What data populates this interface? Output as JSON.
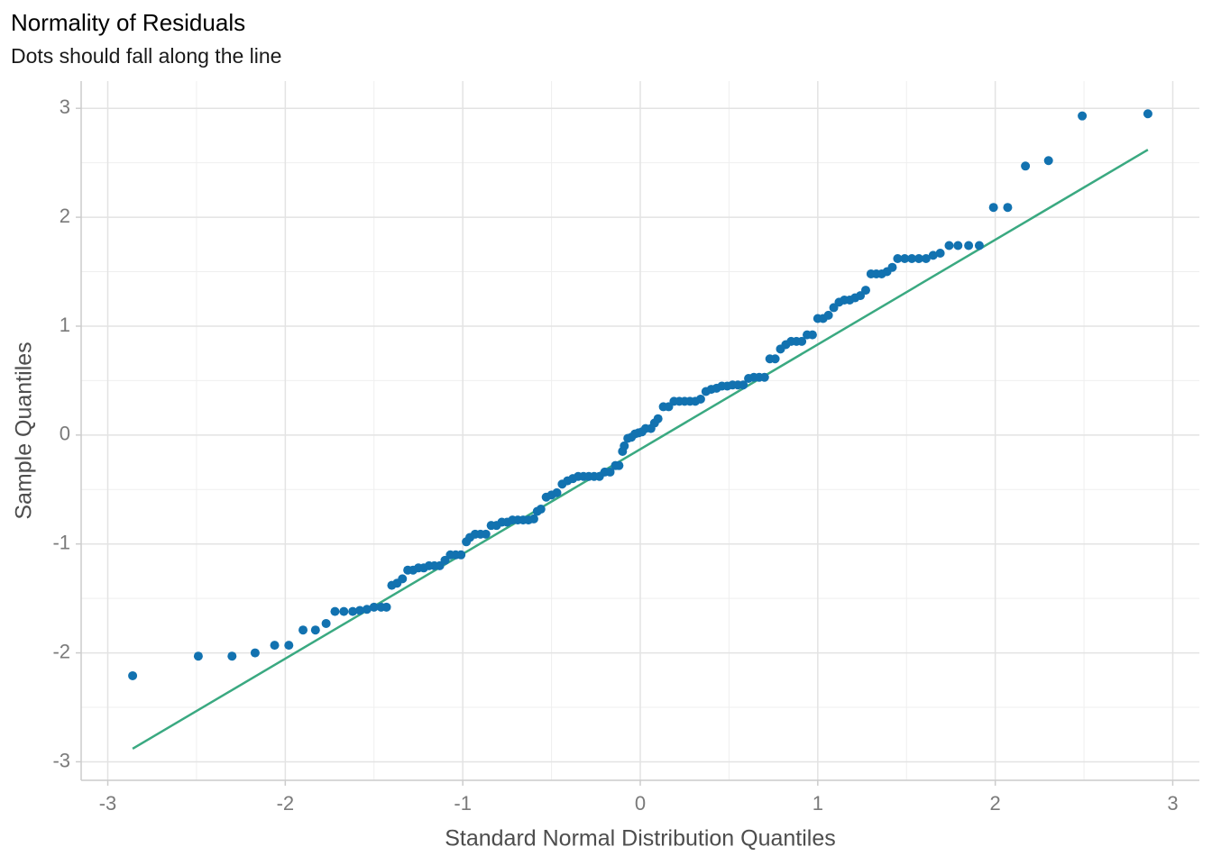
{
  "chart_data": {
    "type": "scatter",
    "title": "Normality of Residuals",
    "subtitle": "Dots should fall along the line",
    "x_label": "Standard Normal Distribution Quantiles",
    "y_label": "Sample Quantiles",
    "xlim": [
      -3.15,
      3.15
    ],
    "ylim": [
      -3.17,
      3.25
    ],
    "xticks": [
      -3,
      -2,
      -1,
      0,
      1,
      2,
      3
    ],
    "yticks": [
      -3,
      -2,
      -1,
      0,
      1,
      2,
      3
    ],
    "xminor": [
      -2.5,
      -1.5,
      -0.5,
      0.5,
      1.5,
      2.5
    ],
    "yminor": [
      -2.5,
      -1.5,
      -0.5,
      0.5,
      1.5,
      2.5
    ],
    "grid": true,
    "color": "#1272b0",
    "x": [
      -2.86,
      -2.49,
      -2.3,
      -2.17,
      -2.06,
      -1.98,
      -1.9,
      -1.83,
      -1.77,
      -1.72,
      -1.67,
      -1.62,
      -1.58,
      -1.54,
      -1.5,
      -1.46,
      -1.43,
      -1.4,
      -1.37,
      -1.34,
      -1.31,
      -1.28,
      -1.25,
      -1.22,
      -1.19,
      -1.16,
      -1.13,
      -1.1,
      -1.07,
      -1.04,
      -1.01,
      -0.98,
      -0.96,
      -0.93,
      -0.9,
      -0.87,
      -0.84,
      -0.81,
      -0.78,
      -0.75,
      -0.72,
      -0.69,
      -0.66,
      -0.63,
      -0.6,
      -0.58,
      -0.56,
      -0.53,
      -0.5,
      -0.47,
      -0.44,
      -0.41,
      -0.38,
      -0.35,
      -0.32,
      -0.29,
      -0.26,
      -0.23,
      -0.2,
      -0.17,
      -0.14,
      -0.12,
      -0.1,
      -0.09,
      -0.07,
      -0.05,
      -0.03,
      -0.01,
      0.01,
      0.03,
      0.06,
      0.08,
      0.1,
      0.13,
      0.16,
      0.19,
      0.22,
      0.25,
      0.28,
      0.31,
      0.34,
      0.37,
      0.4,
      0.43,
      0.46,
      0.49,
      0.52,
      0.55,
      0.58,
      0.61,
      0.64,
      0.67,
      0.7,
      0.73,
      0.76,
      0.79,
      0.82,
      0.85,
      0.88,
      0.91,
      0.94,
      0.97,
      1.0,
      1.03,
      1.06,
      1.09,
      1.12,
      1.15,
      1.18,
      1.21,
      1.24,
      1.27,
      1.3,
      1.33,
      1.36,
      1.39,
      1.42,
      1.45,
      1.49,
      1.53,
      1.57,
      1.61,
      1.65,
      1.69,
      1.74,
      1.79,
      1.85,
      1.91,
      1.99,
      2.07,
      2.17,
      2.3,
      2.49,
      2.86
    ],
    "values": [
      -2.21,
      -2.03,
      -2.03,
      -2.0,
      -1.93,
      -1.93,
      -1.79,
      -1.79,
      -1.73,
      -1.62,
      -1.62,
      -1.62,
      -1.61,
      -1.6,
      -1.58,
      -1.58,
      -1.58,
      -1.38,
      -1.36,
      -1.32,
      -1.24,
      -1.24,
      -1.22,
      -1.22,
      -1.2,
      -1.2,
      -1.2,
      -1.15,
      -1.1,
      -1.1,
      -1.1,
      -0.98,
      -0.94,
      -0.91,
      -0.91,
      -0.91,
      -0.83,
      -0.83,
      -0.8,
      -0.8,
      -0.78,
      -0.78,
      -0.78,
      -0.78,
      -0.77,
      -0.7,
      -0.68,
      -0.57,
      -0.55,
      -0.53,
      -0.45,
      -0.42,
      -0.4,
      -0.38,
      -0.38,
      -0.38,
      -0.38,
      -0.38,
      -0.34,
      -0.34,
      -0.28,
      -0.28,
      -0.15,
      -0.1,
      -0.03,
      -0.02,
      0.01,
      0.02,
      0.03,
      0.06,
      0.06,
      0.11,
      0.15,
      0.26,
      0.26,
      0.31,
      0.31,
      0.31,
      0.31,
      0.31,
      0.33,
      0.4,
      0.42,
      0.43,
      0.45,
      0.45,
      0.46,
      0.46,
      0.46,
      0.52,
      0.53,
      0.53,
      0.53,
      0.7,
      0.7,
      0.79,
      0.83,
      0.86,
      0.86,
      0.86,
      0.92,
      0.92,
      1.07,
      1.07,
      1.1,
      1.17,
      1.22,
      1.24,
      1.24,
      1.26,
      1.28,
      1.33,
      1.48,
      1.48,
      1.48,
      1.5,
      1.54,
      1.62,
      1.62,
      1.62,
      1.62,
      1.62,
      1.65,
      1.67,
      1.74,
      1.74,
      1.74,
      1.74,
      2.09,
      2.09,
      2.47,
      2.52,
      2.93,
      2.95
    ],
    "reference_line": {
      "color": "#3aa981",
      "x": [
        -2.86,
        2.86
      ],
      "y": [
        -2.88,
        2.62
      ]
    }
  }
}
